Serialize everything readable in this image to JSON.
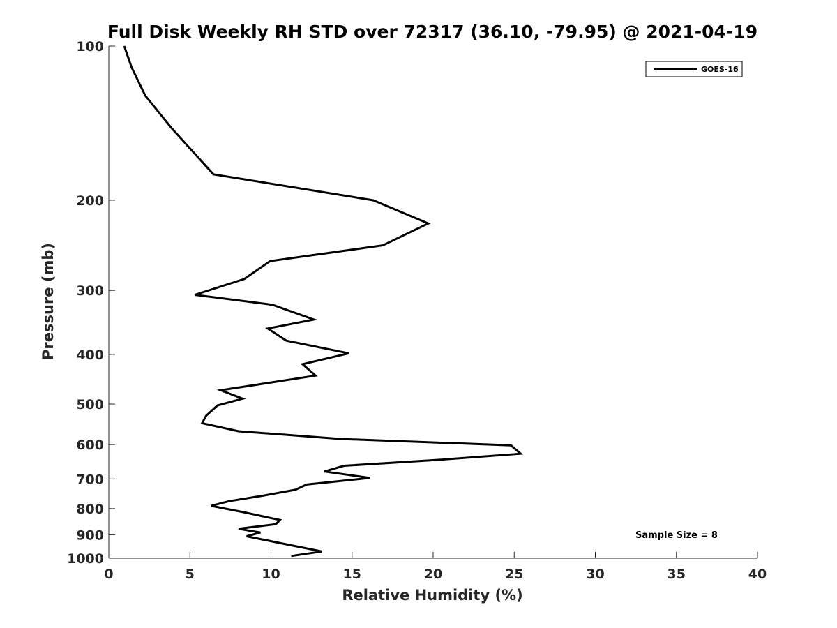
{
  "chart_data": {
    "type": "line",
    "title": "Full Disk Weekly RH STD over 72317 (36.10, -79.95) @ 2021-04-19",
    "xlabel": "Relative Humidity (%)",
    "ylabel": "Pressure (mb)",
    "xlim": [
      0,
      40
    ],
    "ylim": [
      100,
      1000
    ],
    "y_scale": "log",
    "y_reversed": true,
    "x_ticks": [
      0,
      5,
      10,
      15,
      20,
      25,
      30,
      35,
      40
    ],
    "x_tick_labels": [
      "0",
      "5",
      "10",
      "15",
      "20",
      "25",
      "30",
      "35",
      "40"
    ],
    "y_ticks": [
      100,
      200,
      300,
      400,
      500,
      600,
      700,
      800,
      900,
      1000
    ],
    "y_tick_labels": [
      "100",
      "200",
      "300",
      "400",
      "500",
      "600",
      "700",
      "800",
      "900",
      "1000"
    ],
    "grid": false,
    "legend_position": "top-right",
    "annotation": "Sample Size = 8",
    "series": [
      {
        "name": "GOES-16",
        "color": "#000000",
        "x": [
          0.95,
          1.4,
          2.25,
          3.9,
          6.45,
          16.3,
          19.7,
          16.9,
          9.95,
          8.35,
          5.3,
          10.1,
          12.65,
          9.8,
          10.95,
          14.8,
          11.95,
          12.75,
          6.9,
          8.25,
          6.7,
          6.0,
          5.75,
          8.0,
          14.35,
          24.8,
          25.4,
          20.5,
          14.5,
          13.3,
          16.1,
          12.2,
          11.5,
          9.5,
          7.4,
          6.3,
          8.3,
          10.55,
          10.3,
          8.0,
          9.35,
          8.5,
          11.35,
          13.15,
          11.25
        ],
        "y": [
          100,
          110,
          125,
          145,
          178,
          200,
          222,
          245,
          263,
          285,
          306,
          320,
          342,
          356,
          376,
          398,
          418,
          440,
          470,
          488,
          503,
          527,
          545,
          565,
          585,
          602,
          625,
          642,
          660,
          677,
          697,
          718,
          735,
          755,
          774,
          790,
          813,
          842,
          858,
          876,
          891,
          906,
          945,
          970,
          990
        ]
      }
    ]
  }
}
